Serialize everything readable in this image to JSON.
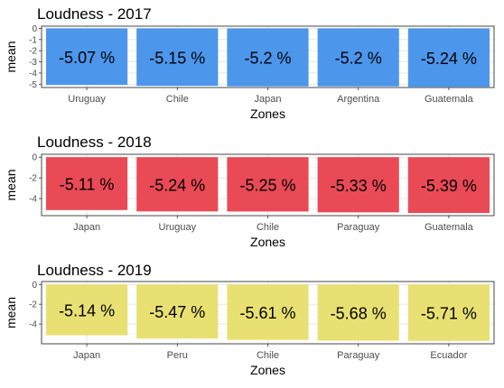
{
  "chart_data": [
    {
      "type": "bar",
      "title": "Loudness - 2017",
      "xlabel": "Zones",
      "ylabel": "mean",
      "categories": [
        "Uruguay",
        "Chile",
        "Japan",
        "Argentina",
        "Guatemala"
      ],
      "values": [
        -5.07,
        -5.15,
        -5.2,
        -5.2,
        -5.24
      ],
      "data_labels": [
        "-5.07 %",
        "-5.15 %",
        "-5.2 %",
        "-5.2 %",
        "-5.24 %"
      ],
      "ylim": [
        -5.3,
        0.2
      ],
      "yticks": [
        0,
        -1,
        -2,
        -3,
        -4,
        -5
      ],
      "ytick_labels": [
        "0",
        "-1",
        "-2",
        "-3",
        "-4",
        "-5"
      ],
      "bar_color": "#4C96EC",
      "grid": true
    },
    {
      "type": "bar",
      "title": "Loudness - 2018",
      "xlabel": "Zones",
      "ylabel": "mean",
      "categories": [
        "Japan",
        "Uruguay",
        "Chile",
        "Paraguay",
        "Guatemala"
      ],
      "values": [
        -5.11,
        -5.24,
        -5.25,
        -5.33,
        -5.39
      ],
      "data_labels": [
        "-5.11 %",
        "-5.24 %",
        "-5.25 %",
        "-5.33 %",
        "-5.39 %"
      ],
      "ylim": [
        -5.65,
        0.28
      ],
      "yticks": [
        0,
        -2,
        -4
      ],
      "ytick_labels": [
        "0",
        "-2",
        "-4"
      ],
      "bar_color": "#E94A55",
      "grid": true
    },
    {
      "type": "bar",
      "title": "Loudness - 2019",
      "xlabel": "Zones",
      "ylabel": "mean",
      "categories": [
        "Japan",
        "Peru",
        "Chile",
        "Paraguay",
        "Ecuador"
      ],
      "values": [
        -5.14,
        -5.47,
        -5.61,
        -5.68,
        -5.71
      ],
      "data_labels": [
        "-5.14 %",
        "-5.47 %",
        "-5.61 %",
        "-5.68 %",
        "-5.71 %"
      ],
      "ylim": [
        -6.0,
        0.3
      ],
      "yticks": [
        0,
        -2,
        -4
      ],
      "ytick_labels": [
        "0",
        "-2",
        "-4"
      ],
      "bar_color": "#E8E072",
      "grid": true
    }
  ]
}
